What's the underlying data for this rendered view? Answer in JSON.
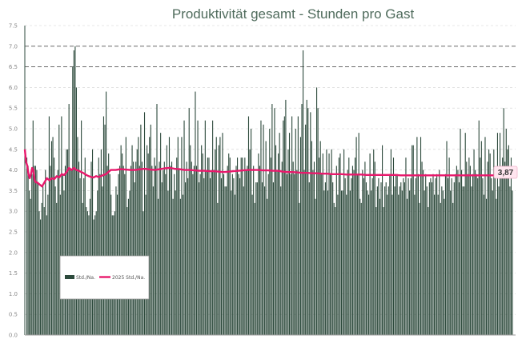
{
  "chart_data": {
    "type": "bar",
    "title": "Produktivität gesamt - Stunden pro Gast",
    "ylim": [
      0,
      7.5
    ],
    "y_ticks": [
      "0.0",
      "0.5",
      "1.0",
      "1.5",
      "2.0",
      "2.5",
      "3.0",
      "3.5",
      "4.0",
      "4.5",
      "5.0",
      "5.5",
      "6.0",
      "6.5",
      "7.0",
      "7.5"
    ],
    "grid": "horizontal dashed at every 0.5; dark dashed lines at 6.5 and 7.0",
    "legend_position": "bottom-left",
    "bar_color": "#2d4a3c",
    "line_color": "#e8196c",
    "series": [
      {
        "name": "Std./Na.",
        "kind": "bar",
        "values": [
          4.3,
          4.1,
          3.5,
          3.3,
          3.9,
          5.2,
          4.1,
          4.1,
          4.0,
          3.7,
          3.0,
          2.8,
          3.2,
          3.6,
          3.1,
          4.0,
          2.9,
          3.4,
          5.3,
          4.1,
          4.7,
          4.8,
          4.3,
          3.6,
          3.2,
          4.0,
          5.1,
          3.4,
          5.3,
          3.9,
          3.5,
          4.1,
          4.5,
          4.5,
          5.6,
          4.0,
          4.0,
          6.5,
          6.9,
          7.0,
          6.0,
          4.8,
          4.2,
          3.8,
          5.2,
          3.2,
          3.8,
          4.3,
          3.1,
          3.0,
          2.9,
          3.3,
          4.2,
          4.5,
          2.8,
          2.9,
          3.0,
          3.5,
          4.3,
          3.9,
          4.5,
          3.6,
          5.3,
          5.1,
          5.9,
          4.1,
          4.4,
          3.9,
          3.4,
          2.9,
          2.9,
          3.0,
          3.6,
          3.4,
          3.9,
          4.1,
          4.6,
          4.4,
          4.1,
          3.9,
          4.8,
          3.1,
          3.3,
          3.5,
          4.1,
          4.6,
          4.2,
          3.7,
          4.2,
          4.5,
          4.8,
          4.1,
          5.1,
          4.2,
          3.0,
          5.4,
          3.4,
          4.6,
          4.4,
          4.8,
          5.1,
          4.1,
          3.6,
          4.3,
          4.1,
          5.6,
          3.3,
          4.2,
          4.9,
          3.7,
          4.0,
          4.2,
          3.9,
          4.6,
          3.5,
          4.8,
          4.1,
          4.2,
          3.3,
          3.9,
          3.5,
          4.3,
          4.8,
          4.0,
          3.3,
          4.8,
          3.4,
          5.2,
          3.7,
          4.2,
          3.8,
          5.5,
          4.6,
          4.2,
          3.9,
          4.1,
          5.9,
          4.1,
          5.2,
          3.7,
          3.9,
          4.6,
          4.4,
          3.8,
          5.2,
          4.0,
          4.3,
          4.3,
          3.8,
          4.0,
          5.2,
          4.0,
          4.5,
          4.8,
          3.2,
          4.6,
          4.8,
          3.8,
          4.9,
          3.9,
          3.6,
          3.6,
          4.1,
          4.4,
          4.3,
          3.5,
          3.9,
          3.8,
          3.4,
          4.1,
          4.3,
          3.9,
          3.8,
          4.3,
          4.3,
          3.6,
          4.3,
          4.0,
          4.1,
          5.3,
          4.5,
          5.0,
          3.4,
          4.1,
          3.2,
          3.7,
          3.7,
          4.4,
          4.1,
          5.2,
          3.7,
          5.1,
          3.6,
          4.7,
          3.3,
          3.9,
          5.0,
          4.3,
          5.6,
          3.7,
          5.5,
          4.6,
          4.0,
          4.4,
          4.9,
          3.6,
          4.2,
          5.2,
          5.3,
          5.7,
          3.9,
          4.5,
          4.9,
          3.9,
          5.3,
          4.2,
          3.9,
          5.0,
          4.0,
          5.3,
          3.2,
          4.8,
          5.6,
          6.9,
          4.0,
          5.1,
          5.7,
          5.5,
          3.7,
          5.4,
          4.7,
          4.0,
          4.2,
          3.3,
          6.0,
          5.5,
          4.3,
          4.7,
          3.9,
          4.4,
          3.5,
          3.7,
          4.5,
          3.5,
          4.4,
          3.9,
          4.5,
          3.7,
          3.2,
          3.1,
          4.1,
          3.4,
          4.3,
          4.4,
          3.5,
          3.5,
          4.5,
          3.8,
          3.4,
          4.0,
          4.3,
          3.5,
          3.8,
          4.1,
          4.0,
          4.3,
          4.8,
          3.9,
          4.9,
          3.3,
          3.2,
          4.0,
          3.8,
          4.2,
          3.7,
          3.5,
          3.4,
          4.4,
          3.5,
          3.8,
          4.5,
          4.2,
          3.1,
          3.6,
          3.8,
          3.3,
          3.7,
          4.6,
          3.1,
          3.6,
          3.7,
          3.4,
          3.6,
          3.9,
          4.5,
          3.4,
          4.3,
          3.6,
          3.9,
          3.9,
          3.4,
          3.6,
          3.7,
          3.5,
          3.8,
          3.7,
          4.3,
          3.3,
          3.8,
          3.5,
          3.8,
          4.6,
          4.6,
          3.4,
          3.8,
          4.8,
          3.9,
          3.2,
          4.8,
          4.2,
          4.0,
          3.5,
          3.9,
          3.6,
          3.1,
          3.7,
          3.8,
          3.7,
          3.9,
          3.4,
          3.8,
          3.9,
          3.4,
          4.0,
          3.2,
          3.6,
          3.5,
          3.3,
          3.9,
          4.7,
          3.8,
          4.3,
          3.5,
          3.8,
          3.2,
          3.7,
          3.9,
          4.1,
          4.0,
          3.7,
          5.0,
          4.0,
          3.6,
          3.6,
          4.9,
          4.2,
          3.9,
          4.3,
          4.1,
          3.6,
          3.9,
          4.5,
          4.0,
          3.9,
          3.8,
          5.2,
          4.3,
          4.7,
          3.8,
          3.4,
          4.8,
          3.3,
          4.2,
          4.5,
          4.4,
          3.8,
          3.5,
          4.5,
          3.9,
          3.3,
          4.9,
          3.6,
          4.9,
          4.1,
          4.3,
          5.5,
          4.2,
          5.0,
          4.5,
          4.6,
          3.6,
          4.3,
          3.5
        ],
        "values_note": "per-day hours per guest, sampled across ~380 bars"
      },
      {
        "name": "2025 Std./Na.",
        "kind": "line",
        "points": [
          [
            0,
            4.5
          ],
          [
            1,
            4.2
          ],
          [
            2,
            4.1
          ],
          [
            3,
            3.9
          ],
          [
            4,
            3.8
          ],
          [
            5,
            3.9
          ],
          [
            6,
            4.05
          ],
          [
            7,
            4.0
          ],
          [
            8,
            3.75
          ],
          [
            9,
            3.7
          ],
          [
            10,
            3.7
          ],
          [
            12,
            3.65
          ],
          [
            14,
            3.6
          ],
          [
            16,
            3.7
          ],
          [
            18,
            3.8
          ],
          [
            20,
            3.75
          ],
          [
            22,
            3.8
          ],
          [
            24,
            3.78
          ],
          [
            26,
            3.85
          ],
          [
            28,
            3.82
          ],
          [
            30,
            3.9
          ],
          [
            32,
            3.88
          ],
          [
            34,
            3.95
          ],
          [
            36,
            4.05
          ],
          [
            38,
            4.0
          ],
          [
            40,
            4.05
          ],
          [
            42,
            4.0
          ],
          [
            44,
            3.98
          ],
          [
            46,
            3.95
          ],
          [
            48,
            3.92
          ],
          [
            50,
            3.88
          ],
          [
            52,
            3.85
          ],
          [
            54,
            3.83
          ],
          [
            56,
            3.82
          ],
          [
            58,
            3.85
          ],
          [
            60,
            3.83
          ],
          [
            62,
            3.85
          ],
          [
            64,
            3.88
          ],
          [
            66,
            3.9
          ],
          [
            68,
            3.95
          ],
          [
            70,
            4.0
          ],
          [
            74,
            4.0
          ],
          [
            78,
            4.02
          ],
          [
            82,
            4.01
          ],
          [
            86,
            4.0
          ],
          [
            90,
            4.0
          ],
          [
            94,
            4.02
          ],
          [
            98,
            4.03
          ],
          [
            102,
            4.01
          ],
          [
            106,
            4.0
          ],
          [
            110,
            4.02
          ],
          [
            114,
            4.04
          ],
          [
            118,
            4.05
          ],
          [
            122,
            4.03
          ],
          [
            126,
            4.02
          ],
          [
            130,
            4.0
          ],
          [
            134,
            4.0
          ],
          [
            138,
            3.99
          ],
          [
            142,
            3.98
          ],
          [
            146,
            3.98
          ],
          [
            150,
            3.97
          ],
          [
            154,
            3.97
          ],
          [
            158,
            3.96
          ],
          [
            162,
            3.95
          ],
          [
            166,
            3.96
          ],
          [
            170,
            3.97
          ],
          [
            174,
            3.98
          ],
          [
            178,
            3.99
          ],
          [
            182,
            4.0
          ],
          [
            186,
            4.0
          ],
          [
            190,
            4.0
          ],
          [
            194,
            3.99
          ],
          [
            198,
            3.99
          ],
          [
            202,
            3.98
          ],
          [
            206,
            3.98
          ],
          [
            210,
            3.96
          ],
          [
            214,
            3.95
          ],
          [
            218,
            3.95
          ],
          [
            222,
            3.94
          ],
          [
            226,
            3.93
          ],
          [
            230,
            3.93
          ],
          [
            234,
            3.92
          ],
          [
            238,
            3.92
          ],
          [
            242,
            3.91
          ],
          [
            246,
            3.91
          ],
          [
            250,
            3.9
          ],
          [
            254,
            3.9
          ],
          [
            258,
            3.9
          ],
          [
            262,
            3.89
          ],
          [
            266,
            3.89
          ],
          [
            270,
            3.89
          ],
          [
            274,
            3.89
          ],
          [
            278,
            3.88
          ],
          [
            282,
            3.88
          ],
          [
            286,
            3.88
          ],
          [
            290,
            3.88
          ],
          [
            294,
            3.88
          ],
          [
            298,
            3.88
          ],
          [
            302,
            3.88
          ],
          [
            306,
            3.87
          ],
          [
            310,
            3.87
          ],
          [
            314,
            3.87
          ],
          [
            318,
            3.87
          ],
          [
            322,
            3.87
          ],
          [
            326,
            3.87
          ],
          [
            330,
            3.87
          ],
          [
            334,
            3.87
          ],
          [
            338,
            3.87
          ],
          [
            342,
            3.87
          ],
          [
            346,
            3.87
          ],
          [
            350,
            3.87
          ],
          [
            354,
            3.87
          ],
          [
            358,
            3.87
          ],
          [
            362,
            3.87
          ],
          [
            366,
            3.87
          ],
          [
            370,
            3.87
          ],
          [
            374,
            3.87
          ],
          [
            378,
            3.87
          ],
          [
            382,
            3.87
          ]
        ]
      }
    ],
    "end_label": "3,87"
  }
}
